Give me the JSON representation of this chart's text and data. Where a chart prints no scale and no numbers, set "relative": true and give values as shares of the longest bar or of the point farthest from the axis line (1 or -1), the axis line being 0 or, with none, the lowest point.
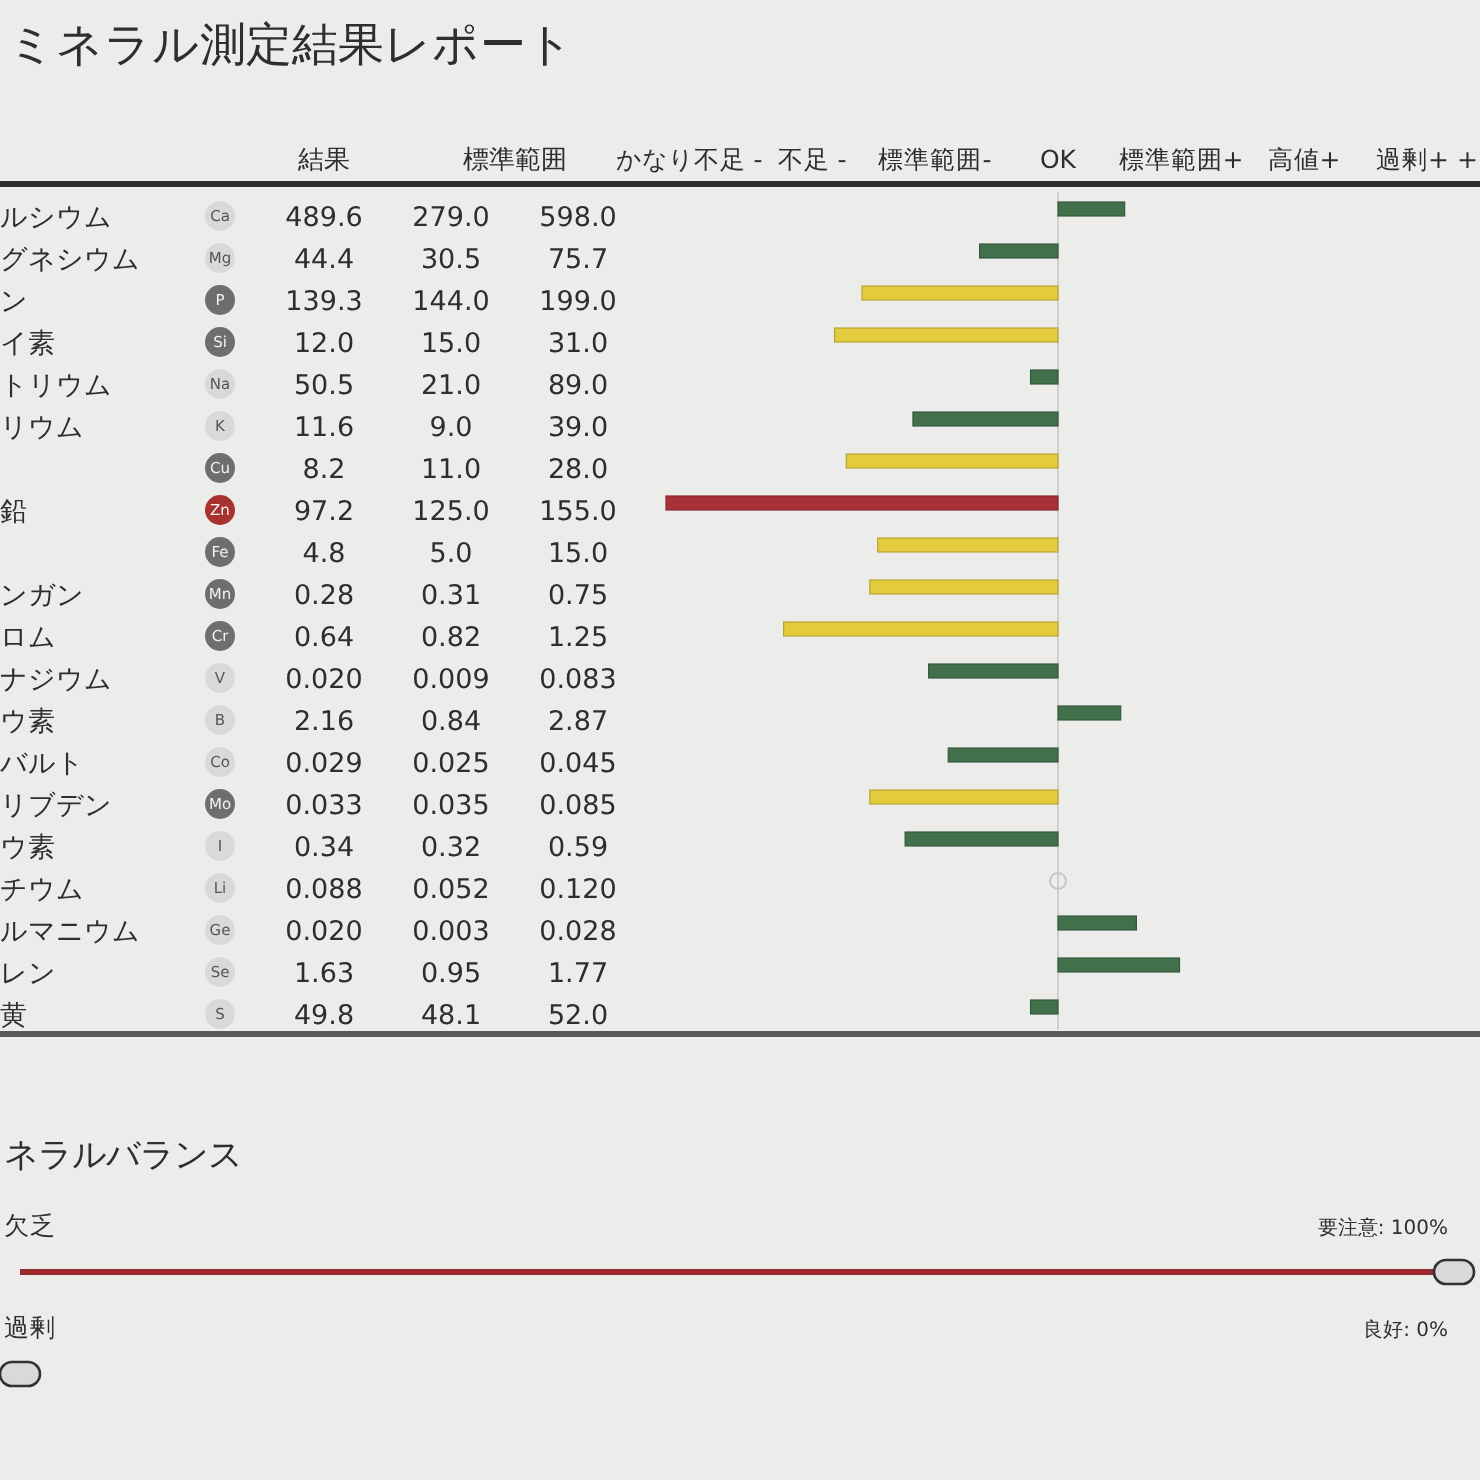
{
  "chart_data": [
    {
      "type": "other",
      "title": "ミネラル測定結果レポート",
      "categories": [
        "Ca",
        "Mg",
        "P",
        "Si",
        "Na",
        "K",
        "Cu",
        "Zn",
        "Fe",
        "Mn",
        "Cr",
        "V",
        "B",
        "Co",
        "Mo",
        "I",
        "Li",
        "Ge",
        "Se",
        "S"
      ],
      "y2_categories": [
        "ルシウム",
        "グネシウム",
        "ン",
        "イ素",
        "トリウム",
        "リウム",
        null,
        "鉛",
        null,
        "ンガン",
        "ロム",
        "ナジウム",
        "ウ素",
        "バルト",
        "リブデン",
        "ウ素",
        "チウム",
        "ルマニウム",
        "レン",
        "黄"
      ],
      "colors": [
        "#d9d9d9",
        "#d9d9d9",
        "#6e6e6e",
        "#6e6e6e",
        "#d9d9d9",
        "#d9d9d9",
        "#6e6e6e",
        "#a8322f",
        "#6e6e6e",
        "#6e6e6e",
        "#6e6e6e",
        "#d9d9d9",
        "#d9d9d9",
        "#d9d9d9",
        "#6e6e6e",
        "#d9d9d9",
        "#d9d9d9",
        "#d9d9d9",
        "#d9d9d9",
        "#d9d9d9"
      ],
      "series": [
        {
          "name": "結果",
          "values": [
            489.6,
            44.4,
            139.3,
            12.0,
            50.5,
            11.6,
            8.2,
            97.2,
            4.8,
            0.28,
            0.64,
            0.02,
            2.16,
            0.029,
            0.033,
            0.34,
            0.088,
            0.02,
            1.63,
            49.8
          ],
          "value_labels": [
            "489.6",
            "44.4",
            "139.3",
            "12.0",
            "50.5",
            "11.6",
            "8.2",
            "97.2",
            "4.8",
            "0.28",
            "0.64",
            "0.020",
            "2.16",
            "0.029",
            "0.033",
            "0.34",
            "0.088",
            "0.020",
            "1.63",
            "49.8"
          ]
        },
        {
          "name": "標準範囲",
          "values": [
            279.0,
            30.5,
            144.0,
            15.0,
            21.0,
            9.0,
            11.0,
            125.0,
            5.0,
            0.31,
            0.82,
            0.009,
            0.84,
            0.025,
            0.035,
            0.32,
            0.052,
            0.003,
            0.95,
            48.1
          ],
          "value_labels": [
            "279.0",
            "30.5",
            "144.0",
            "15.0",
            "21.0",
            "9.0",
            "11.0",
            "125.0",
            "5.0",
            "0.31",
            "0.82",
            "0.009",
            "0.84",
            "0.025",
            "0.035",
            "0.32",
            "0.052",
            "0.003",
            "0.95",
            "48.1"
          ]
        },
        {
          "values": [
            598.0,
            75.7,
            199.0,
            31.0,
            89.0,
            39.0,
            28.0,
            155.0,
            15.0,
            0.75,
            1.25,
            0.083,
            2.87,
            0.045,
            0.085,
            0.59,
            0.12,
            0.028,
            1.77,
            52.0
          ],
          "value_labels": [
            "598.0",
            "75.7",
            "199.0",
            "31.0",
            "89.0",
            "39.0",
            "28.0",
            "155.0",
            "15.0",
            "0.75",
            "1.25",
            "0.083",
            "2.87",
            "0.045",
            "0.085",
            "0.59",
            "0.120",
            "0.028",
            "1.77",
            "52.0"
          ]
        }
      ]
    },
    {
      "type": "bar",
      "orientation": "horizontal",
      "relative": true,
      "tick_labels": false,
      "categories": [
        "Ca",
        "Mg",
        "P",
        "Si",
        "Na",
        "K",
        "Cu",
        "Zn",
        "Fe",
        "Mn",
        "Cr",
        "V",
        "B",
        "Co",
        "Mo",
        "I",
        "Li",
        "Ge",
        "Se",
        "S"
      ],
      "values": [
        0.17,
        -0.2,
        -0.5,
        -0.57,
        -0.07,
        -0.37,
        -0.54,
        -1,
        -0.46,
        -0.48,
        -0.7,
        -0.33,
        0.16,
        -0.28,
        -0.48,
        -0.39,
        0,
        0.2,
        0.31,
        -0.07
      ],
      "colors": [
        "#41704a",
        "#41704a",
        "#e3cb3e",
        "#e3cb3e",
        "#41704a",
        "#41704a",
        "#e3cb3e",
        "#a63238",
        "#e3cb3e",
        "#e3cb3e",
        "#e3cb3e",
        "#41704a",
        "#41704a",
        "#41704a",
        "#e3cb3e",
        "#41704a",
        "#41704a",
        "#41704a",
        "#41704a",
        "#41704a"
      ],
      "annotations": [
        "かなり不足 -",
        "不足 -",
        "標準範囲-",
        "OK",
        "標準範囲+",
        "高値+",
        "過剰+ +"
      ]
    },
    {
      "type": "bar",
      "orientation": "horizontal",
      "title": "ネラルバランス",
      "categories": [
        "欠乏",
        "過剰"
      ],
      "values": [
        100,
        0
      ],
      "value_labels": [
        "要注意: 100%",
        "良好: 0%"
      ],
      "color": "#9b2a30"
    }
  ]
}
